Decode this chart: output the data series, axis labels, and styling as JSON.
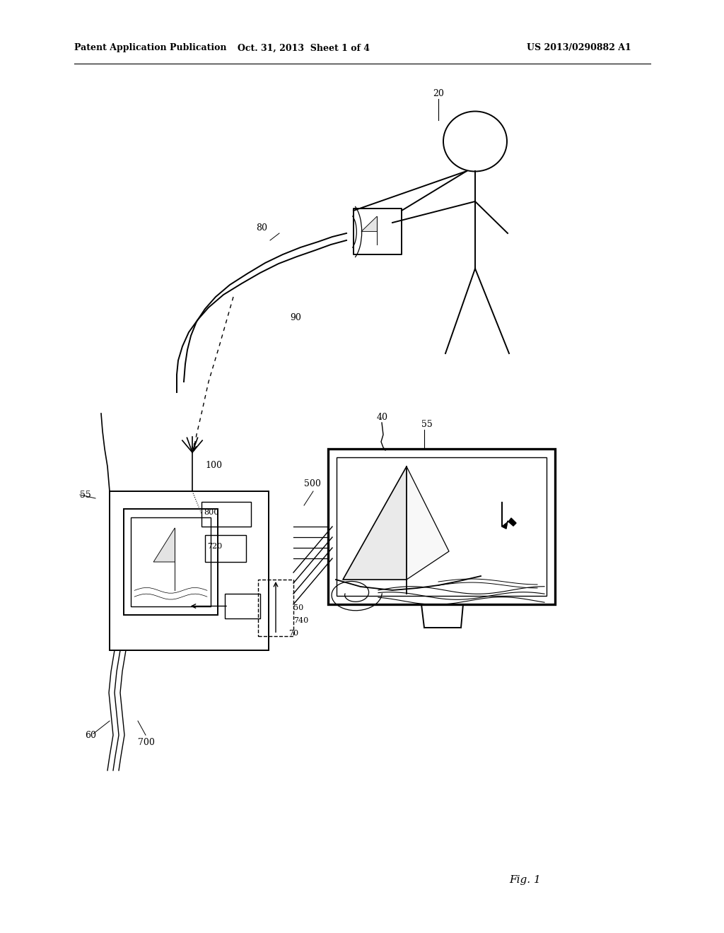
{
  "bg_color": "#ffffff",
  "header_left": "Patent Application Publication",
  "header_mid": "Oct. 31, 2013  Sheet 1 of 4",
  "header_right": "US 2013/0290882 A1",
  "fig_label": "Fig. 1",
  "lw": 1.4,
  "lc": "#000000"
}
